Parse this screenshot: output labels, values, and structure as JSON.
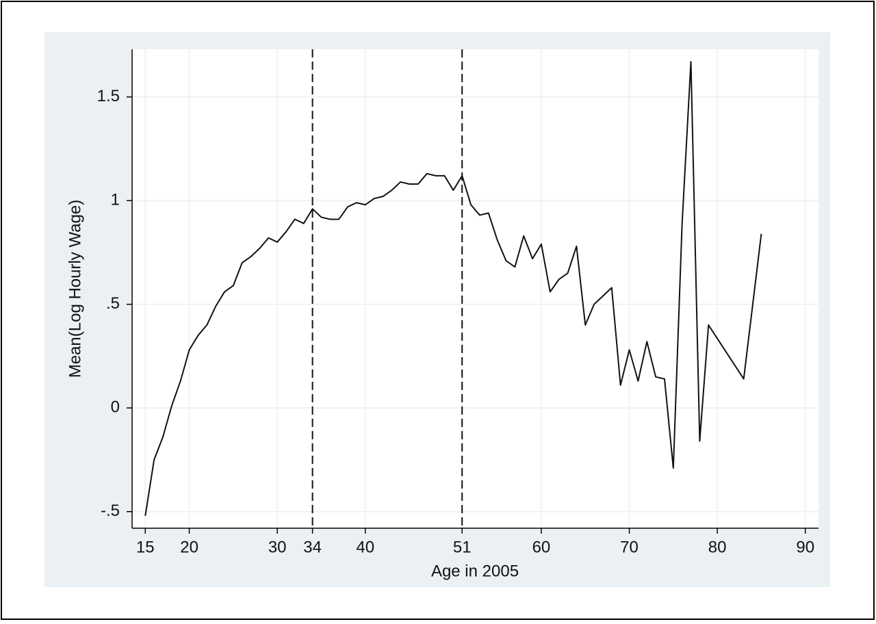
{
  "chart_data": {
    "type": "line",
    "x_label": "Age in 2005",
    "y_label": "Mean(Log Hourly Wage)",
    "x": [
      15,
      16,
      17,
      18,
      19,
      20,
      21,
      22,
      23,
      24,
      25,
      26,
      27,
      28,
      29,
      30,
      31,
      32,
      33,
      34,
      35,
      36,
      37,
      38,
      39,
      40,
      41,
      42,
      43,
      44,
      45,
      46,
      47,
      48,
      49,
      50,
      51,
      52,
      53,
      54,
      55,
      56,
      57,
      58,
      59,
      60,
      61,
      62,
      63,
      64,
      65,
      66,
      67,
      68,
      69,
      70,
      71,
      72,
      73,
      74,
      75,
      76,
      77,
      78,
      79,
      83,
      85
    ],
    "series": [
      {
        "color": "#111111",
        "values": [
          -0.52,
          -0.25,
          -0.14,
          0.01,
          0.13,
          0.28,
          0.35,
          0.4,
          0.49,
          0.56,
          0.59,
          0.7,
          0.73,
          0.77,
          0.82,
          0.8,
          0.85,
          0.91,
          0.89,
          0.96,
          0.92,
          0.91,
          0.91,
          0.97,
          0.99,
          0.98,
          1.01,
          1.02,
          1.05,
          1.09,
          1.08,
          1.08,
          1.13,
          1.12,
          1.12,
          1.05,
          1.12,
          0.98,
          0.93,
          0.94,
          0.81,
          0.71,
          0.68,
          0.83,
          0.72,
          0.79,
          0.56,
          0.62,
          0.65,
          0.78,
          0.4,
          0.5,
          0.54,
          0.58,
          0.11,
          0.28,
          0.13,
          0.32,
          0.15,
          0.14,
          -0.29,
          0.89,
          1.67,
          -0.16,
          0.4,
          0.14,
          0.84
        ]
      }
    ],
    "reference_lines": [
      34,
      51
    ],
    "xlim": [
      13.5,
      91.5
    ],
    "ylim": [
      -0.58,
      1.73
    ],
    "xticks": [
      15,
      20,
      30,
      34,
      40,
      51,
      60,
      70,
      80,
      90
    ],
    "yticks": [
      {
        "value": -0.5,
        "label": "-.5"
      },
      0,
      {
        "value": 0.5,
        "label": ".5"
      },
      1,
      1.5
    ],
    "grid": true
  }
}
